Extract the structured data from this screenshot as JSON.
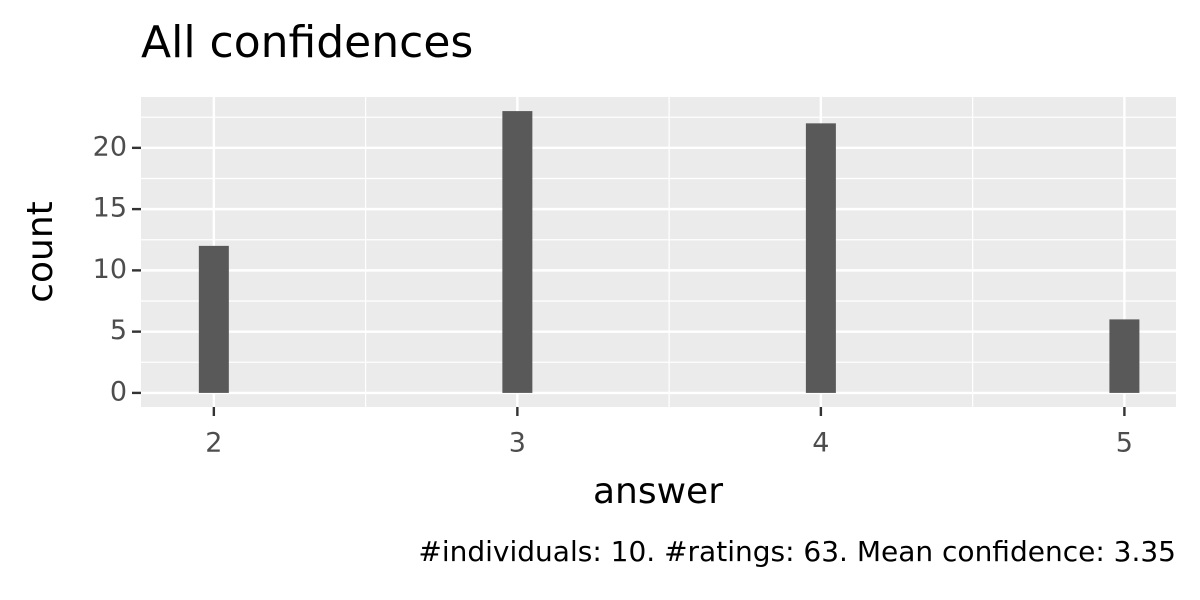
{
  "chart_data": {
    "type": "bar",
    "title": "All confidences",
    "x_label": "answer",
    "y_label": "count",
    "caption": "#individuals: 10. #ratings: 63. Mean confidence: 3.35",
    "x": [
      2,
      3,
      4,
      5
    ],
    "values": [
      12,
      23,
      22,
      6
    ],
    "color": "#595959",
    "xlim": [
      1.76,
      5.17
    ],
    "xticks": [
      2,
      3,
      4,
      5
    ],
    "ylim": [
      -1.15,
      24.15
    ],
    "yticks": [
      0,
      5,
      10,
      15,
      20
    ],
    "grid": true
  }
}
